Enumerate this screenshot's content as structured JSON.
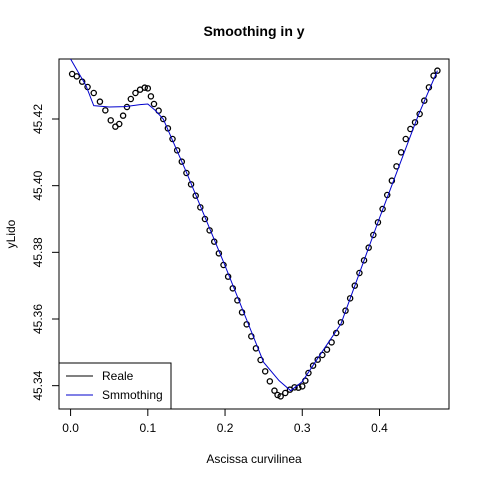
{
  "chart_data": {
    "type": "scatter",
    "title": "Smoothing in y",
    "xlabel": "Ascissa curvilinea",
    "ylabel": "yLido",
    "xlim": [
      -0.015,
      0.49
    ],
    "ylim": [
      45.333,
      45.438
    ],
    "x_ticks": [
      0.0,
      0.1,
      0.2,
      0.3,
      0.4
    ],
    "x_tick_labels": [
      "0.0",
      "0.1",
      "0.2",
      "0.3",
      "0.4"
    ],
    "y_ticks": [
      45.34,
      45.36,
      45.38,
      45.4,
      45.42
    ],
    "y_tick_labels": [
      "45.34",
      "45.36",
      "45.38",
      "45.40",
      "45.42"
    ],
    "grid": false,
    "legend": {
      "position": "bottom-left",
      "entries": [
        {
          "label": "Reale",
          "color": "#000000"
        },
        {
          "label": "Smmothing",
          "color": "#0000cd"
        }
      ]
    },
    "series": [
      {
        "name": "Reale",
        "kind": "points",
        "color": "#000000",
        "points": [
          [
            0.002,
            45.4335
          ],
          [
            0.008,
            45.4328
          ],
          [
            0.015,
            45.4312
          ],
          [
            0.022,
            45.4296
          ],
          [
            0.03,
            45.4278
          ],
          [
            0.038,
            45.4252
          ],
          [
            0.045,
            45.4226
          ],
          [
            0.052,
            45.4196
          ],
          [
            0.058,
            45.4177
          ],
          [
            0.063,
            45.4185
          ],
          [
            0.068,
            45.421
          ],
          [
            0.073,
            45.4236
          ],
          [
            0.078,
            45.426
          ],
          [
            0.084,
            45.4278
          ],
          [
            0.09,
            45.4288
          ],
          [
            0.096,
            45.4294
          ],
          [
            0.1,
            45.4292
          ],
          [
            0.104,
            45.4268
          ],
          [
            0.108,
            45.4245
          ],
          [
            0.114,
            45.4225
          ],
          [
            0.12,
            45.42
          ],
          [
            0.126,
            45.4172
          ],
          [
            0.132,
            45.414
          ],
          [
            0.138,
            45.4106
          ],
          [
            0.144,
            45.4072
          ],
          [
            0.15,
            45.4038
          ],
          [
            0.156,
            45.4004
          ],
          [
            0.162,
            45.397
          ],
          [
            0.168,
            45.3935
          ],
          [
            0.174,
            45.39
          ],
          [
            0.18,
            45.3866
          ],
          [
            0.186,
            45.3832
          ],
          [
            0.192,
            45.3797
          ],
          [
            0.198,
            45.3762
          ],
          [
            0.204,
            45.3727
          ],
          [
            0.21,
            45.3692
          ],
          [
            0.216,
            45.3656
          ],
          [
            0.222,
            45.362
          ],
          [
            0.228,
            45.3584
          ],
          [
            0.234,
            45.3548
          ],
          [
            0.24,
            45.3512
          ],
          [
            0.246,
            45.3477
          ],
          [
            0.252,
            45.3443
          ],
          [
            0.258,
            45.3413
          ],
          [
            0.264,
            45.3385
          ],
          [
            0.268,
            45.3372
          ],
          [
            0.272,
            45.3368
          ],
          [
            0.278,
            45.3378
          ],
          [
            0.284,
            45.3388
          ],
          [
            0.29,
            45.3395
          ],
          [
            0.295,
            45.3394
          ],
          [
            0.3,
            45.3398
          ],
          [
            0.304,
            45.3415
          ],
          [
            0.308,
            45.3438
          ],
          [
            0.314,
            45.346
          ],
          [
            0.32,
            45.3478
          ],
          [
            0.326,
            45.3492
          ],
          [
            0.332,
            45.3508
          ],
          [
            0.338,
            45.353
          ],
          [
            0.344,
            45.3558
          ],
          [
            0.35,
            45.359
          ],
          [
            0.356,
            45.3625
          ],
          [
            0.362,
            45.3662
          ],
          [
            0.368,
            45.37
          ],
          [
            0.374,
            45.3738
          ],
          [
            0.38,
            45.3776
          ],
          [
            0.386,
            45.3814
          ],
          [
            0.392,
            45.3852
          ],
          [
            0.398,
            45.389
          ],
          [
            0.404,
            45.393
          ],
          [
            0.41,
            45.3972
          ],
          [
            0.416,
            45.4015
          ],
          [
            0.422,
            45.4058
          ],
          [
            0.428,
            45.41
          ],
          [
            0.434,
            45.414
          ],
          [
            0.44,
            45.417
          ],
          [
            0.446,
            45.419
          ],
          [
            0.452,
            45.4215
          ],
          [
            0.458,
            45.4255
          ],
          [
            0.464,
            45.4295
          ],
          [
            0.47,
            45.433
          ],
          [
            0.475,
            45.4345
          ]
        ]
      },
      {
        "name": "Smmothing",
        "kind": "line",
        "color": "#0000cd",
        "points": [
          [
            0.0,
            45.438
          ],
          [
            0.01,
            45.434
          ],
          [
            0.02,
            45.43
          ],
          [
            0.03,
            45.424
          ],
          [
            0.05,
            45.4236
          ],
          [
            0.07,
            45.4237
          ],
          [
            0.09,
            45.4243
          ],
          [
            0.1,
            45.4245
          ],
          [
            0.11,
            45.4225
          ],
          [
            0.12,
            45.42
          ],
          [
            0.15,
            45.404
          ],
          [
            0.2,
            45.376
          ],
          [
            0.25,
            45.347
          ],
          [
            0.27,
            45.3415
          ],
          [
            0.285,
            45.3385
          ],
          [
            0.3,
            45.3412
          ],
          [
            0.32,
            45.3482
          ],
          [
            0.35,
            45.3585
          ],
          [
            0.4,
            45.3903
          ],
          [
            0.45,
            45.421
          ],
          [
            0.475,
            45.4345
          ]
        ]
      }
    ]
  }
}
